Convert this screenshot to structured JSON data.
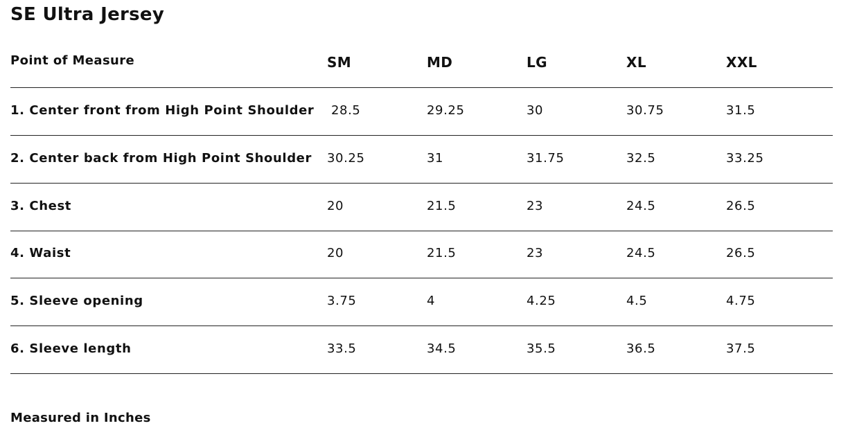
{
  "title": "SE Ultra Jersey",
  "table": {
    "header": [
      "Point of Measure",
      "SM",
      "MD",
      "LG",
      "XL",
      "XXL"
    ],
    "rows": [
      [
        "1. Center front from High Point Shoulder",
        "28.5",
        "29.25",
        "30",
        "30.75",
        "31.5"
      ],
      [
        "2. Center back from High Point Shoulder",
        "30.25",
        "31",
        "31.75",
        "32.5",
        "33.25"
      ],
      [
        "3. Chest",
        "20",
        "21.5",
        "23",
        "24.5",
        "26.5"
      ],
      [
        "4. Waist",
        "20",
        "21.5",
        "23",
        "24.5",
        "26.5"
      ],
      [
        "5. Sleeve opening",
        "3.75",
        "4",
        "4.25",
        "4.5",
        "4.75"
      ],
      [
        "6. Sleeve length",
        "33.5",
        "34.5",
        "35.5",
        "36.5",
        "37.5"
      ]
    ]
  },
  "note": "Measured in Inches"
}
